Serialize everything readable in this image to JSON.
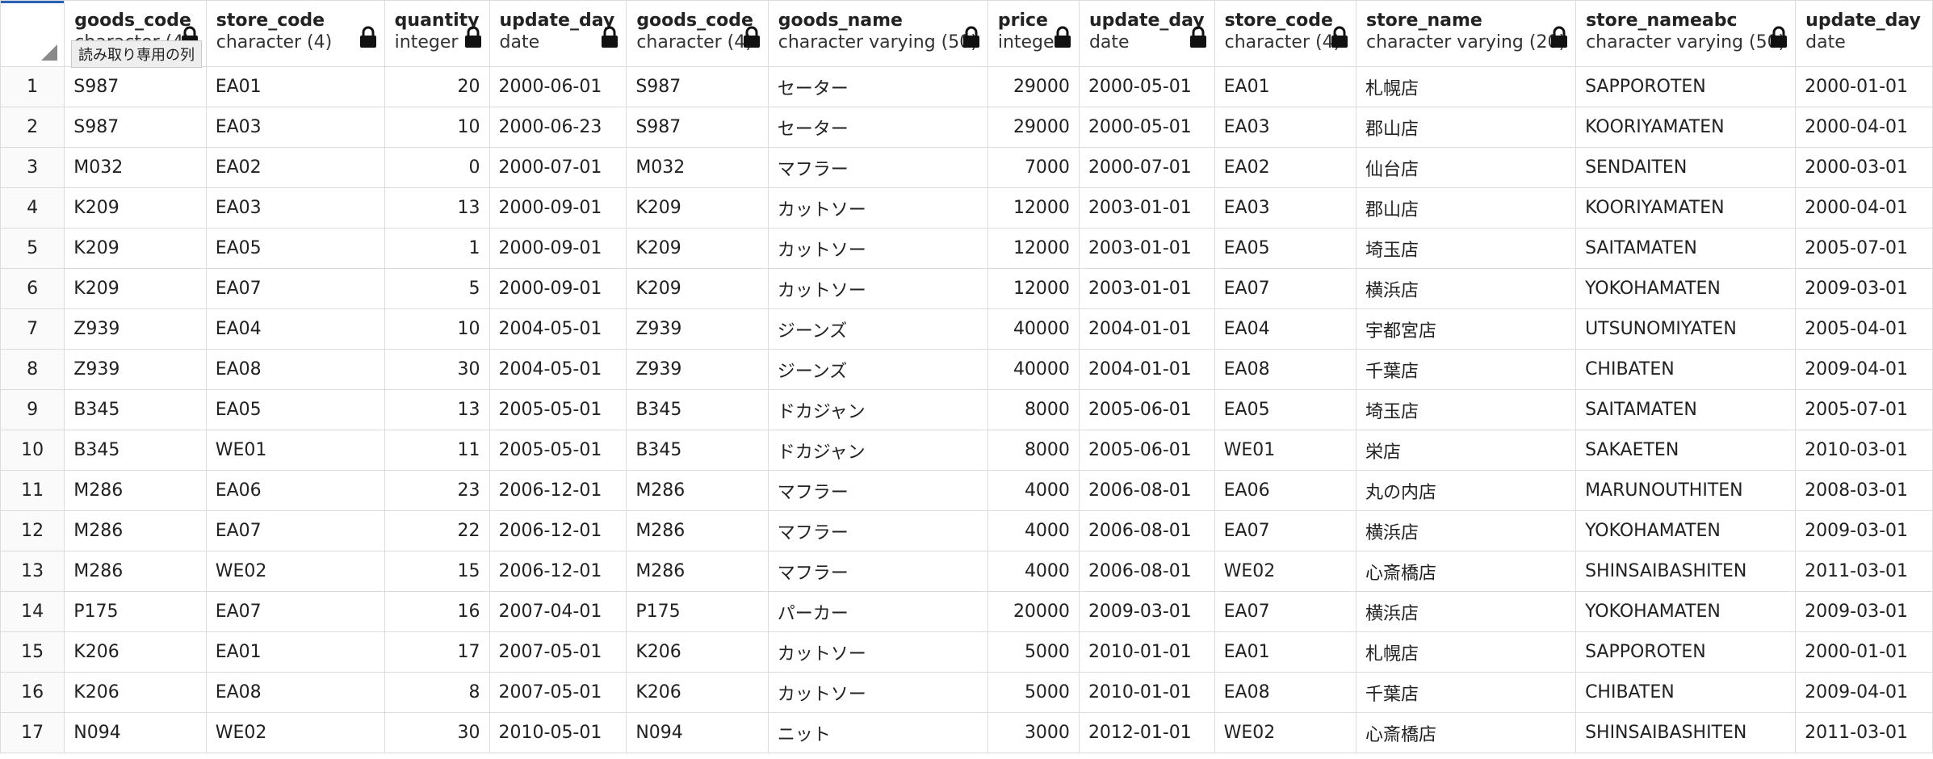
{
  "tooltip": "読み取り専用の列",
  "columns": [
    {
      "name": "goods_code",
      "type": "character (4)",
      "lock": true,
      "num": false
    },
    {
      "name": "store_code",
      "type": "character (4)",
      "lock": true,
      "num": false
    },
    {
      "name": "quantity",
      "type": "integer",
      "lock": true,
      "num": true
    },
    {
      "name": "update_day",
      "type": "date",
      "lock": true,
      "num": false
    },
    {
      "name": "goods_code",
      "type": "character (4)",
      "lock": true,
      "num": false
    },
    {
      "name": "goods_name",
      "type": "character varying (50)",
      "lock": true,
      "num": false
    },
    {
      "name": "price",
      "type": "integer",
      "lock": true,
      "num": true
    },
    {
      "name": "update_day",
      "type": "date",
      "lock": true,
      "num": false
    },
    {
      "name": "store_code",
      "type": "character (4)",
      "lock": true,
      "num": false
    },
    {
      "name": "store_name",
      "type": "character varying (20)",
      "lock": true,
      "num": false
    },
    {
      "name": "store_nameabc",
      "type": "character varying (50)",
      "lock": true,
      "num": false
    },
    {
      "name": "update_day",
      "type": "date",
      "lock": false,
      "num": false
    }
  ],
  "rows": [
    [
      "1",
      "S987",
      "EA01",
      "20",
      "2000-06-01",
      "S987",
      "セーター",
      "29000",
      "2000-05-01",
      "EA01",
      "札幌店",
      "SAPPOROTEN",
      "2000-01-01"
    ],
    [
      "2",
      "S987",
      "EA03",
      "10",
      "2000-06-23",
      "S987",
      "セーター",
      "29000",
      "2000-05-01",
      "EA03",
      "郡山店",
      "KOORIYAMATEN",
      "2000-04-01"
    ],
    [
      "3",
      "M032",
      "EA02",
      "0",
      "2000-07-01",
      "M032",
      "マフラー",
      "7000",
      "2000-07-01",
      "EA02",
      "仙台店",
      "SENDAITEN",
      "2000-03-01"
    ],
    [
      "4",
      "K209",
      "EA03",
      "13",
      "2000-09-01",
      "K209",
      "カットソー",
      "12000",
      "2003-01-01",
      "EA03",
      "郡山店",
      "KOORIYAMATEN",
      "2000-04-01"
    ],
    [
      "5",
      "K209",
      "EA05",
      "1",
      "2000-09-01",
      "K209",
      "カットソー",
      "12000",
      "2003-01-01",
      "EA05",
      "埼玉店",
      "SAITAMATEN",
      "2005-07-01"
    ],
    [
      "6",
      "K209",
      "EA07",
      "5",
      "2000-09-01",
      "K209",
      "カットソー",
      "12000",
      "2003-01-01",
      "EA07",
      "横浜店",
      "YOKOHAMATEN",
      "2009-03-01"
    ],
    [
      "7",
      "Z939",
      "EA04",
      "10",
      "2004-05-01",
      "Z939",
      "ジーンズ",
      "40000",
      "2004-01-01",
      "EA04",
      "宇都宮店",
      "UTSUNOMIYATEN",
      "2005-04-01"
    ],
    [
      "8",
      "Z939",
      "EA08",
      "30",
      "2004-05-01",
      "Z939",
      "ジーンズ",
      "40000",
      "2004-01-01",
      "EA08",
      "千葉店",
      "CHIBATEN",
      "2009-04-01"
    ],
    [
      "9",
      "B345",
      "EA05",
      "13",
      "2005-05-01",
      "B345",
      "ドカジャン",
      "8000",
      "2005-06-01",
      "EA05",
      "埼玉店",
      "SAITAMATEN",
      "2005-07-01"
    ],
    [
      "10",
      "B345",
      "WE01",
      "11",
      "2005-05-01",
      "B345",
      "ドカジャン",
      "8000",
      "2005-06-01",
      "WE01",
      "栄店",
      "SAKAETEN",
      "2010-03-01"
    ],
    [
      "11",
      "M286",
      "EA06",
      "23",
      "2006-12-01",
      "M286",
      "マフラー",
      "4000",
      "2006-08-01",
      "EA06",
      "丸の内店",
      "MARUNOUTHITEN",
      "2008-03-01"
    ],
    [
      "12",
      "M286",
      "EA07",
      "22",
      "2006-12-01",
      "M286",
      "マフラー",
      "4000",
      "2006-08-01",
      "EA07",
      "横浜店",
      "YOKOHAMATEN",
      "2009-03-01"
    ],
    [
      "13",
      "M286",
      "WE02",
      "15",
      "2006-12-01",
      "M286",
      "マフラー",
      "4000",
      "2006-08-01",
      "WE02",
      "心斎橋店",
      "SHINSAIBASHITEN",
      "2011-03-01"
    ],
    [
      "14",
      "P175",
      "EA07",
      "16",
      "2007-04-01",
      "P175",
      "パーカー",
      "20000",
      "2009-03-01",
      "EA07",
      "横浜店",
      "YOKOHAMATEN",
      "2009-03-01"
    ],
    [
      "15",
      "K206",
      "EA01",
      "17",
      "2007-05-01",
      "K206",
      "カットソー",
      "5000",
      "2010-01-01",
      "EA01",
      "札幌店",
      "SAPPOROTEN",
      "2000-01-01"
    ],
    [
      "16",
      "K206",
      "EA08",
      "8",
      "2007-05-01",
      "K206",
      "カットソー",
      "5000",
      "2010-01-01",
      "EA08",
      "千葉店",
      "CHIBATEN",
      "2009-04-01"
    ],
    [
      "17",
      "N094",
      "WE02",
      "30",
      "2010-05-01",
      "N094",
      "ニット",
      "3000",
      "2012-01-01",
      "WE02",
      "心斎橋店",
      "SHINSAIBASHITEN",
      "2011-03-01"
    ]
  ]
}
